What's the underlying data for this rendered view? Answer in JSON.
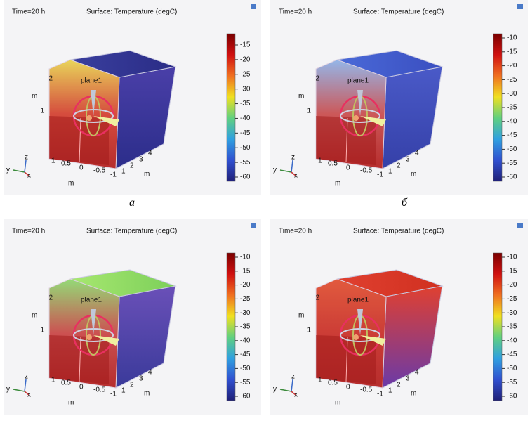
{
  "panels": [
    {
      "time": "Time=20 h",
      "surface": "Surface: Temperature (degC)",
      "plane": "plane1",
      "colorbar_ticks": [
        "-15",
        "-20",
        "-25",
        "-30",
        "-35",
        "-40",
        "-45",
        "-50",
        "-55",
        "-60"
      ],
      "z_axis": {
        "ticks": [
          "2",
          "1"
        ],
        "unit": "m"
      },
      "x_axis": {
        "ticks": [
          "1",
          "0.5",
          "0",
          "-0.5",
          "-1"
        ],
        "unit": "m"
      },
      "y_axis": {
        "ticks": [
          "1",
          "2",
          "3",
          "4"
        ],
        "unit": "m"
      },
      "triad": [
        "y",
        "z",
        "x"
      ]
    },
    {
      "time": "Time=20 h",
      "surface": "Surface: Temperature (degC)",
      "plane": "plane1",
      "colorbar_ticks": [
        "-10",
        "-15",
        "-20",
        "-25",
        "-30",
        "-35",
        "-40",
        "-45",
        "-50",
        "-55",
        "-60"
      ],
      "z_axis": {
        "ticks": [
          "2",
          "1"
        ],
        "unit": "m"
      },
      "x_axis": {
        "ticks": [
          "1",
          "0.5",
          "0",
          "-0.5",
          "-1"
        ],
        "unit": "m"
      },
      "y_axis": {
        "ticks": [
          "1",
          "2",
          "3",
          "4"
        ],
        "unit": "m"
      },
      "triad": [
        "y",
        "z",
        "x"
      ]
    },
    {
      "time": "Time=20 h",
      "surface": "Surface: Temperature (degC)",
      "plane": "plane1",
      "colorbar_ticks": [
        "-10",
        "-15",
        "-20",
        "-25",
        "-30",
        "-35",
        "-40",
        "-45",
        "-50",
        "-55",
        "-60"
      ],
      "z_axis": {
        "ticks": [
          "2",
          "1"
        ],
        "unit": "m"
      },
      "x_axis": {
        "ticks": [
          "1",
          "0.5",
          "0",
          "-0.5",
          "-1"
        ],
        "unit": "m"
      },
      "y_axis": {
        "ticks": [
          "1",
          "2",
          "3",
          "4"
        ],
        "unit": "m"
      },
      "triad": [
        "y",
        "z",
        "x"
      ]
    },
    {
      "time": "Time=20 h",
      "surface": "Surface: Temperature (degC)",
      "plane": "plane1",
      "colorbar_ticks": [
        "-10",
        "-15",
        "-20",
        "-25",
        "-30",
        "-35",
        "-40",
        "-45",
        "-50",
        "-55",
        "-60"
      ],
      "z_axis": {
        "ticks": [
          "2",
          "1"
        ],
        "unit": "m"
      },
      "x_axis": {
        "ticks": [
          "1",
          "0.5",
          "0",
          "-0.5",
          "-1"
        ],
        "unit": "m"
      },
      "y_axis": {
        "ticks": [
          "1",
          "2",
          "3",
          "4"
        ],
        "unit": "m"
      },
      "triad": [
        "y",
        "z",
        "x"
      ]
    }
  ],
  "captions": [
    "а",
    "б"
  ]
}
